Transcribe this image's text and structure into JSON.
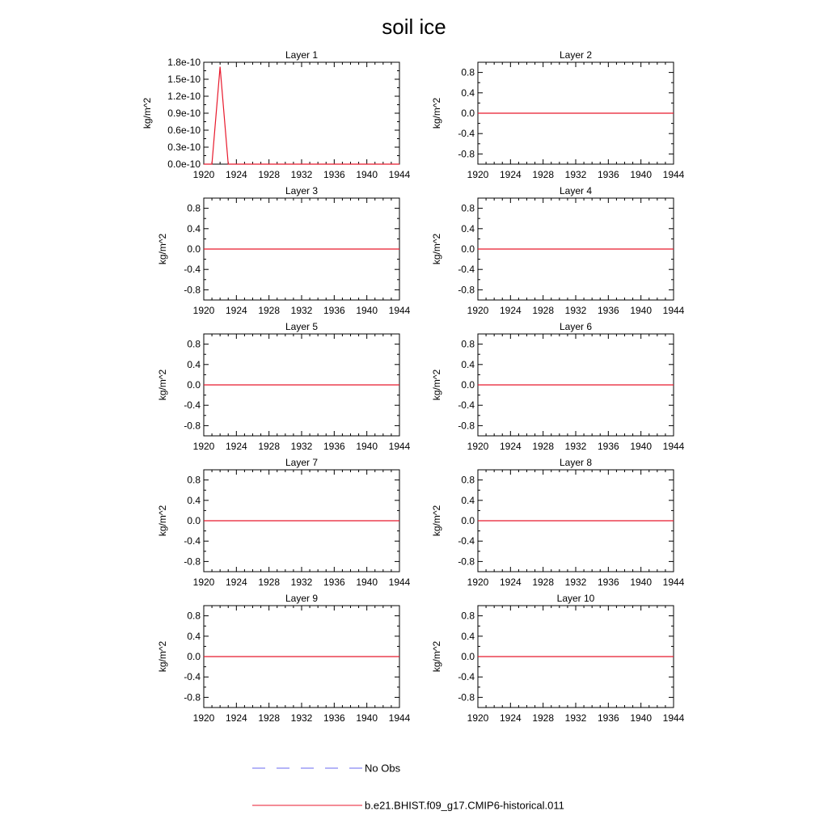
{
  "figure_title": "soil ice",
  "chart_data": [
    {
      "type": "line",
      "title": "Layer 1",
      "ylabel": "kg/m^2",
      "xlim": [
        1920,
        1944
      ],
      "x_ticks": [
        1920,
        1924,
        1928,
        1932,
        1936,
        1940,
        1944
      ],
      "ylim": [
        0,
        1.8e-10
      ],
      "y_tick_values": [
        0,
        3e-11,
        6e-11,
        9e-11,
        1.2e-10,
        1.5e-10,
        1.8e-10
      ],
      "y_tick_labels": [
        "0.0e-10",
        "0.3e-10",
        "0.6e-10",
        "0.9e-10",
        "1.2e-10",
        "1.5e-10",
        "1.8e-10"
      ],
      "series": [
        {
          "name": "b.e21.BHIST.f09_g17.CMIP6-historical.011",
          "color": "#e8192c",
          "x": [
            1920,
            1921,
            1922,
            1923,
            1944
          ],
          "y": [
            0,
            0,
            1.72e-10,
            0,
            0
          ]
        }
      ]
    },
    {
      "type": "line",
      "title": "Layer 2",
      "ylabel": "kg/m^2",
      "xlim": [
        1920,
        1944
      ],
      "x_ticks": [
        1920,
        1924,
        1928,
        1932,
        1936,
        1940,
        1944
      ],
      "ylim": [
        -1,
        1
      ],
      "y_tick_values": [
        -0.8,
        -0.4,
        0,
        0.4,
        0.8
      ],
      "y_tick_labels": [
        "-0.8",
        "-0.4",
        "0.0",
        "0.4",
        "0.8"
      ],
      "series": [
        {
          "name": "b.e21.BHIST.f09_g17.CMIP6-historical.011",
          "color": "#e8192c",
          "x": [
            1920,
            1944
          ],
          "y": [
            0,
            0
          ]
        }
      ]
    },
    {
      "type": "line",
      "title": "Layer 3",
      "ylabel": "kg/m^2",
      "xlim": [
        1920,
        1944
      ],
      "x_ticks": [
        1920,
        1924,
        1928,
        1932,
        1936,
        1940,
        1944
      ],
      "ylim": [
        -1,
        1
      ],
      "y_tick_values": [
        -0.8,
        -0.4,
        0,
        0.4,
        0.8
      ],
      "y_tick_labels": [
        "-0.8",
        "-0.4",
        "0.0",
        "0.4",
        "0.8"
      ],
      "series": [
        {
          "name": "b.e21.BHIST.f09_g17.CMIP6-historical.011",
          "color": "#e8192c",
          "x": [
            1920,
            1944
          ],
          "y": [
            0,
            0
          ]
        }
      ]
    },
    {
      "type": "line",
      "title": "Layer 4",
      "ylabel": "kg/m^2",
      "xlim": [
        1920,
        1944
      ],
      "x_ticks": [
        1920,
        1924,
        1928,
        1932,
        1936,
        1940,
        1944
      ],
      "ylim": [
        -1,
        1
      ],
      "y_tick_values": [
        -0.8,
        -0.4,
        0,
        0.4,
        0.8
      ],
      "y_tick_labels": [
        "-0.8",
        "-0.4",
        "0.0",
        "0.4",
        "0.8"
      ],
      "series": [
        {
          "name": "b.e21.BHIST.f09_g17.CMIP6-historical.011",
          "color": "#e8192c",
          "x": [
            1920,
            1944
          ],
          "y": [
            0,
            0
          ]
        }
      ]
    },
    {
      "type": "line",
      "title": "Layer 5",
      "ylabel": "kg/m^2",
      "xlim": [
        1920,
        1944
      ],
      "x_ticks": [
        1920,
        1924,
        1928,
        1932,
        1936,
        1940,
        1944
      ],
      "ylim": [
        -1,
        1
      ],
      "y_tick_values": [
        -0.8,
        -0.4,
        0,
        0.4,
        0.8
      ],
      "y_tick_labels": [
        "-0.8",
        "-0.4",
        "0.0",
        "0.4",
        "0.8"
      ],
      "series": [
        {
          "name": "b.e21.BHIST.f09_g17.CMIP6-historical.011",
          "color": "#e8192c",
          "x": [
            1920,
            1944
          ],
          "y": [
            0,
            0
          ]
        }
      ]
    },
    {
      "type": "line",
      "title": "Layer 6",
      "ylabel": "kg/m^2",
      "xlim": [
        1920,
        1944
      ],
      "x_ticks": [
        1920,
        1924,
        1928,
        1932,
        1936,
        1940,
        1944
      ],
      "ylim": [
        -1,
        1
      ],
      "y_tick_values": [
        -0.8,
        -0.4,
        0,
        0.4,
        0.8
      ],
      "y_tick_labels": [
        "-0.8",
        "-0.4",
        "0.0",
        "0.4",
        "0.8"
      ],
      "series": [
        {
          "name": "b.e21.BHIST.f09_g17.CMIP6-historical.011",
          "color": "#e8192c",
          "x": [
            1920,
            1944
          ],
          "y": [
            0,
            0
          ]
        }
      ]
    },
    {
      "type": "line",
      "title": "Layer 7",
      "ylabel": "kg/m^2",
      "xlim": [
        1920,
        1944
      ],
      "x_ticks": [
        1920,
        1924,
        1928,
        1932,
        1936,
        1940,
        1944
      ],
      "ylim": [
        -1,
        1
      ],
      "y_tick_values": [
        -0.8,
        -0.4,
        0,
        0.4,
        0.8
      ],
      "y_tick_labels": [
        "-0.8",
        "-0.4",
        "0.0",
        "0.4",
        "0.8"
      ],
      "series": [
        {
          "name": "b.e21.BHIST.f09_g17.CMIP6-historical.011",
          "color": "#e8192c",
          "x": [
            1920,
            1944
          ],
          "y": [
            0,
            0
          ]
        }
      ]
    },
    {
      "type": "line",
      "title": "Layer 8",
      "ylabel": "kg/m^2",
      "xlim": [
        1920,
        1944
      ],
      "x_ticks": [
        1920,
        1924,
        1928,
        1932,
        1936,
        1940,
        1944
      ],
      "ylim": [
        -1,
        1
      ],
      "y_tick_values": [
        -0.8,
        -0.4,
        0,
        0.4,
        0.8
      ],
      "y_tick_labels": [
        "-0.8",
        "-0.4",
        "0.0",
        "0.4",
        "0.8"
      ],
      "series": [
        {
          "name": "b.e21.BHIST.f09_g17.CMIP6-historical.011",
          "color": "#e8192c",
          "x": [
            1920,
            1944
          ],
          "y": [
            0,
            0
          ]
        }
      ]
    },
    {
      "type": "line",
      "title": "Layer 9",
      "ylabel": "kg/m^2",
      "xlim": [
        1920,
        1944
      ],
      "x_ticks": [
        1920,
        1924,
        1928,
        1932,
        1936,
        1940,
        1944
      ],
      "ylim": [
        -1,
        1
      ],
      "y_tick_values": [
        -0.8,
        -0.4,
        0,
        0.4,
        0.8
      ],
      "y_tick_labels": [
        "-0.8",
        "-0.4",
        "0.0",
        "0.4",
        "0.8"
      ],
      "series": [
        {
          "name": "b.e21.BHIST.f09_g17.CMIP6-historical.011",
          "color": "#e8192c",
          "x": [
            1920,
            1944
          ],
          "y": [
            0,
            0
          ]
        }
      ]
    },
    {
      "type": "line",
      "title": "Layer 10",
      "ylabel": "kg/m^2",
      "xlim": [
        1920,
        1944
      ],
      "x_ticks": [
        1920,
        1924,
        1928,
        1932,
        1936,
        1940,
        1944
      ],
      "ylim": [
        -1,
        1
      ],
      "y_tick_values": [
        -0.8,
        -0.4,
        0,
        0.4,
        0.8
      ],
      "y_tick_labels": [
        "-0.8",
        "-0.4",
        "0.0",
        "0.4",
        "0.8"
      ],
      "series": [
        {
          "name": "b.e21.BHIST.f09_g17.CMIP6-historical.011",
          "color": "#e8192c",
          "x": [
            1920,
            1944
          ],
          "y": [
            0,
            0
          ]
        }
      ]
    }
  ],
  "legend": [
    {
      "label": "No Obs",
      "style": "dashed",
      "color": "#6a6af0"
    },
    {
      "label": "b.e21.BHIST.f09_g17.CMIP6-historical.011",
      "style": "solid",
      "color": "#e8192c"
    }
  ]
}
